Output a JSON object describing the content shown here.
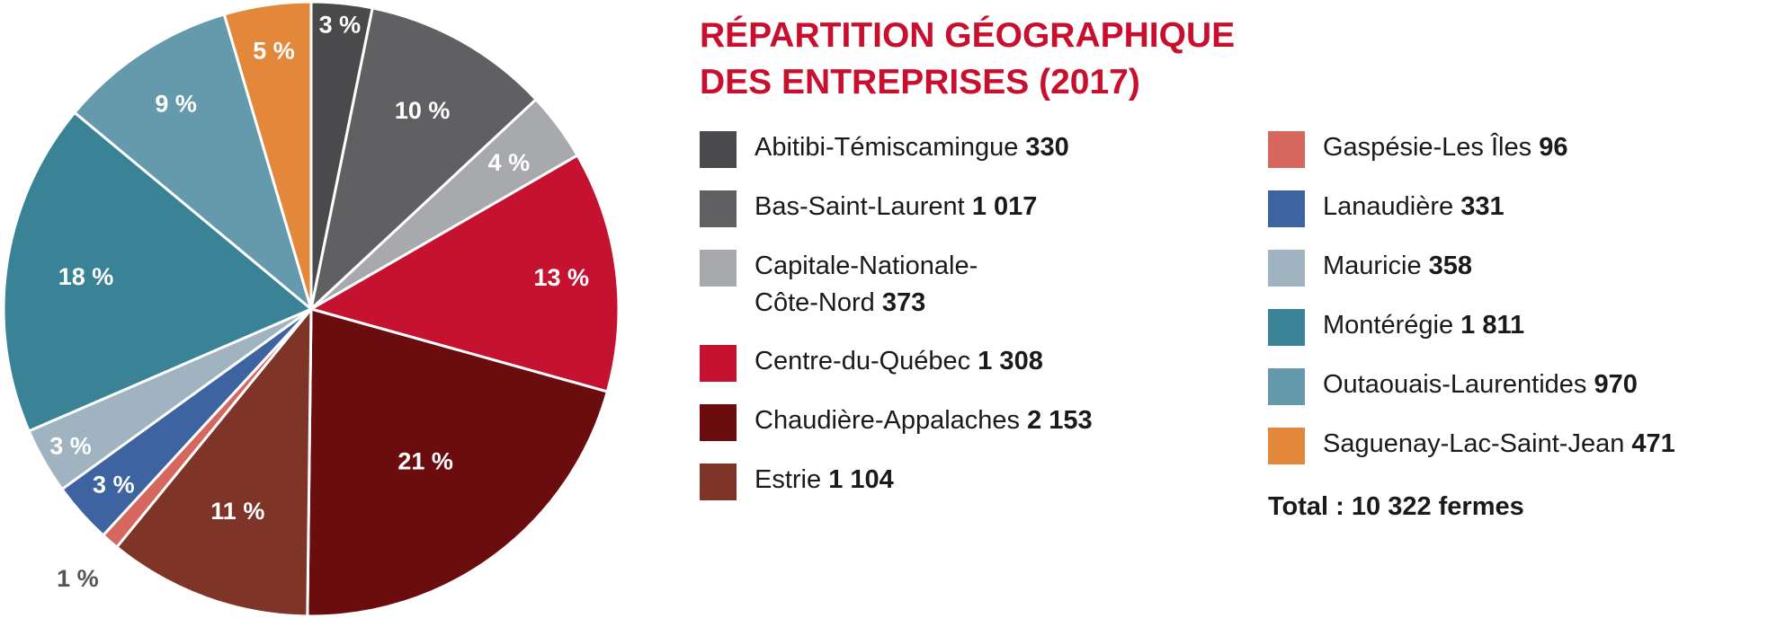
{
  "chart_data": {
    "type": "pie",
    "title": "RÉPARTITION GÉOGRAPHIQUE DES ENTREPRISES (2017)",
    "title_lines": [
      "RÉPARTITION GÉOGRAPHIQUE",
      "DES ENTREPRISES (2017)"
    ],
    "legend_placement": "right",
    "slices": [
      {
        "name": "Abitibi-Témiscamingue",
        "value": 330,
        "value_text": "330",
        "pct": "3 %",
        "color": "#4a4a4c"
      },
      {
        "name": "Bas-Saint-Laurent",
        "value": 1017,
        "value_text": "1 017",
        "pct": "10 %",
        "color": "#606062"
      },
      {
        "name": "Capitale-Nationale-Côte-Nord",
        "name_lines": [
          "Capitale-Nationale-",
          "Côte-Nord"
        ],
        "value": 373,
        "value_text": "373",
        "pct": "4 %",
        "color": "#a8a9ac"
      },
      {
        "name": "Centre-du-Québec",
        "value": 1308,
        "value_text": "1 308",
        "pct": "13 %",
        "color": "#c41230"
      },
      {
        "name": "Chaudière-Appalaches",
        "value": 2153,
        "value_text": "2 153",
        "pct": "21 %",
        "color": "#6b0c0e"
      },
      {
        "name": "Estrie",
        "value": 1104,
        "value_text": "1 104",
        "pct": "11 %",
        "color": "#7e3528"
      },
      {
        "name": "Gaspésie-Les Îles",
        "value": 96,
        "value_text": "96",
        "pct": "1 %",
        "color": "#d5675e"
      },
      {
        "name": "Lanaudière",
        "value": 331,
        "value_text": "331",
        "pct": "3 %",
        "color": "#3d63a0"
      },
      {
        "name": "Mauricie",
        "value": 358,
        "value_text": "358",
        "pct": "3 %",
        "color": "#9fb3c0"
      },
      {
        "name": "Montérégie",
        "value": 1811,
        "value_text": "1 811",
        "pct": "18 %",
        "color": "#3a8396"
      },
      {
        "name": "Outaouais-Laurentides",
        "value": 970,
        "value_text": "970",
        "pct": "9 %",
        "color": "#6599ac"
      },
      {
        "name": "Saguenay-Lac-Saint-Jean",
        "value": 471,
        "value_text": "471",
        "pct": "5 %",
        "color": "#e3873a"
      }
    ],
    "total_label": "Total : 10 322 fermes"
  }
}
